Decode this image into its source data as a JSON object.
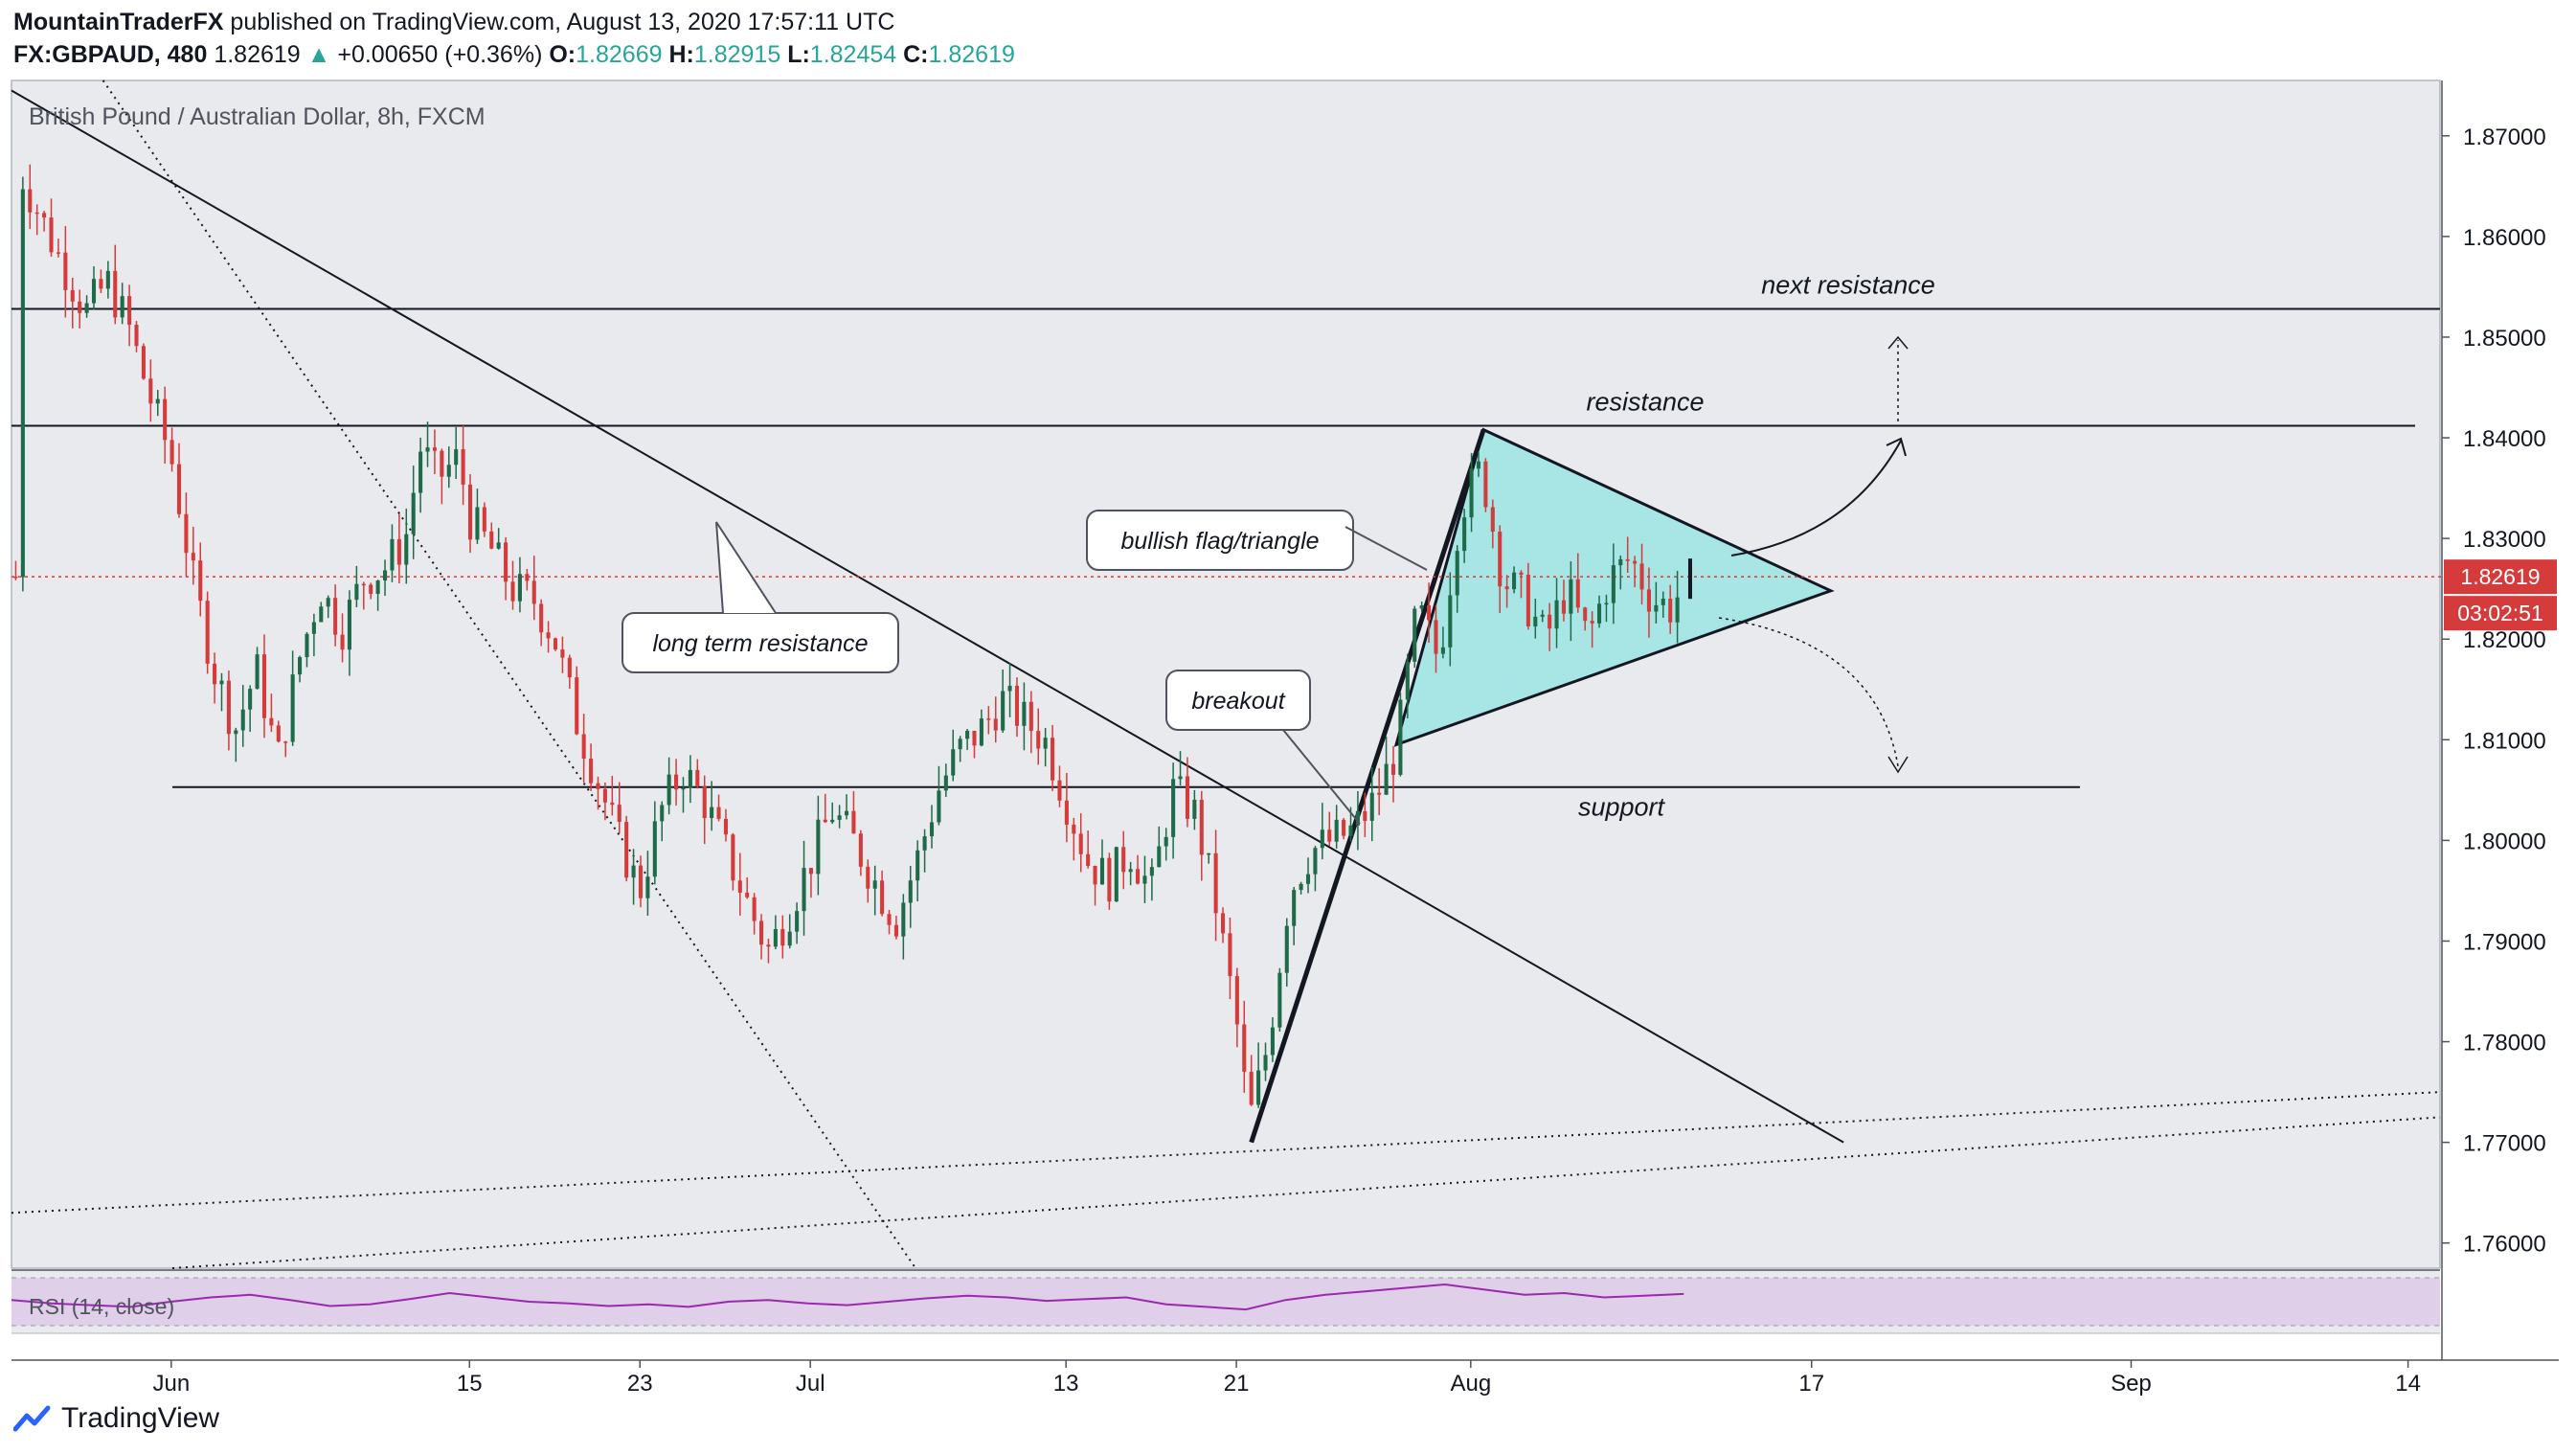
{
  "header": {
    "author": "MountainTraderFX",
    "published_text": "published on TradingView.com, August 13, 2020 17:57:11 UTC",
    "symbol": "FX:GBPAUD, 480",
    "last": "1.82619",
    "change": "+0.00650 (+0.36%)",
    "o_label": "O:",
    "o_value": "1.82669",
    "h_label": "H:",
    "h_value": "1.82915",
    "l_label": "L:",
    "l_value": "1.82454",
    "c_label": "C:",
    "c_value": "1.82619"
  },
  "footer": {
    "brand": "TradingView",
    "logo_icon": "tradingview-logo-icon"
  },
  "colors": {
    "background": "#e9eaed",
    "up_candle": "#1e6b4a",
    "down_candle": "#d53b3b",
    "triangle_fill": "#a8e6e6",
    "price_line": "#d53b3b",
    "rsi_band": "#dfcfe8",
    "rsi_line": "#9c27b0",
    "accent_up": "#26a69a"
  },
  "chart_data": {
    "type": "candlestick",
    "title": "British Pound / Australian Dollar, 8h, FXCM",
    "y_ticks": [
      "1.87000",
      "1.86000",
      "1.85000",
      "1.84000",
      "1.83000",
      "1.82000",
      "1.81000",
      "1.80000",
      "1.79000",
      "1.78000",
      "1.77000",
      "1.76000"
    ],
    "ylim": [
      1.7575,
      1.8755
    ],
    "x_ticks": [
      {
        "label": "Jun",
        "day": 0
      },
      {
        "label": "15",
        "day": 14
      },
      {
        "label": "23",
        "day": 22
      },
      {
        "label": "Jul",
        "day": 30
      },
      {
        "label": "13",
        "day": 42
      },
      {
        "label": "21",
        "day": 50
      },
      {
        "label": "Aug",
        "day": 61
      },
      {
        "label": "17",
        "day": 77
      },
      {
        "label": "Sep",
        "day": 92
      },
      {
        "label": "14",
        "day": 105
      }
    ],
    "xlim_days": [
      -7.5,
      106.5
    ],
    "last_price_label": "1.82619",
    "countdown_label": "03:02:51",
    "current_price": 1.82619,
    "closes_path": [
      {
        "day": -7.0,
        "price": 1.866
      },
      {
        "day": -5.5,
        "price": 1.859
      },
      {
        "day": -4.0,
        "price": 1.8525
      },
      {
        "day": -3.0,
        "price": 1.8555
      },
      {
        "day": -2.0,
        "price": 1.851
      },
      {
        "day": -1.0,
        "price": 1.844
      },
      {
        "day": 0.0,
        "price": 1.838
      },
      {
        "day": 1.0,
        "price": 1.826
      },
      {
        "day": 2.0,
        "price": 1.817
      },
      {
        "day": 3.0,
        "price": 1.811
      },
      {
        "day": 4.0,
        "price": 1.817
      },
      {
        "day": 5.0,
        "price": 1.808
      },
      {
        "day": 6.0,
        "price": 1.818
      },
      {
        "day": 7.0,
        "price": 1.825
      },
      {
        "day": 8.0,
        "price": 1.821
      },
      {
        "day": 9.0,
        "price": 1.826
      },
      {
        "day": 10.0,
        "price": 1.827
      },
      {
        "day": 11.0,
        "price": 1.83
      },
      {
        "day": 11.7,
        "price": 1.839
      },
      {
        "day": 12.5,
        "price": 1.836
      },
      {
        "day": 13.5,
        "price": 1.838
      },
      {
        "day": 14.0,
        "price": 1.832
      },
      {
        "day": 15.0,
        "price": 1.829
      },
      {
        "day": 16.0,
        "price": 1.825
      },
      {
        "day": 17.0,
        "price": 1.824
      },
      {
        "day": 18.0,
        "price": 1.82
      },
      {
        "day": 19.0,
        "price": 1.812
      },
      {
        "day": 20.0,
        "price": 1.806
      },
      {
        "day": 21.0,
        "price": 1.8
      },
      {
        "day": 22.0,
        "price": 1.795
      },
      {
        "day": 23.0,
        "price": 1.803
      },
      {
        "day": 24.0,
        "price": 1.807
      },
      {
        "day": 25.0,
        "price": 1.804
      },
      {
        "day": 26.0,
        "price": 1.799
      },
      {
        "day": 27.0,
        "price": 1.794
      },
      {
        "day": 28.0,
        "price": 1.789
      },
      {
        "day": 29.0,
        "price": 1.793
      },
      {
        "day": 30.0,
        "price": 1.798
      },
      {
        "day": 31.0,
        "price": 1.803
      },
      {
        "day": 32.0,
        "price": 1.8
      },
      {
        "day": 33.0,
        "price": 1.796
      },
      {
        "day": 34.0,
        "price": 1.792
      },
      {
        "day": 35.0,
        "price": 1.798
      },
      {
        "day": 36.0,
        "price": 1.805
      },
      {
        "day": 37.0,
        "price": 1.809
      },
      {
        "day": 38.0,
        "price": 1.811
      },
      {
        "day": 39.0,
        "price": 1.814
      },
      {
        "day": 40.0,
        "price": 1.812
      },
      {
        "day": 41.0,
        "price": 1.81
      },
      {
        "day": 42.0,
        "price": 1.804
      },
      {
        "day": 43.0,
        "price": 1.798
      },
      {
        "day": 44.0,
        "price": 1.796
      },
      {
        "day": 45.0,
        "price": 1.799
      },
      {
        "day": 46.0,
        "price": 1.795
      },
      {
        "day": 47.0,
        "price": 1.805
      },
      {
        "day": 48.0,
        "price": 1.803
      },
      {
        "day": 49.0,
        "price": 1.794
      },
      {
        "day": 50.0,
        "price": 1.782
      },
      {
        "day": 50.6,
        "price": 1.772
      },
      {
        "day": 51.5,
        "price": 1.78
      },
      {
        "day": 52.5,
        "price": 1.795
      },
      {
        "day": 53.5,
        "price": 1.799
      },
      {
        "day": 54.5,
        "price": 1.8
      },
      {
        "day": 55.5,
        "price": 1.801
      },
      {
        "day": 56.5,
        "price": 1.804
      },
      {
        "day": 57.5,
        "price": 1.809
      },
      {
        "day": 58.5,
        "price": 1.823
      },
      {
        "day": 59.5,
        "price": 1.818
      },
      {
        "day": 60.5,
        "price": 1.833
      },
      {
        "day": 61.5,
        "price": 1.837
      },
      {
        "day": 62.5,
        "price": 1.826
      },
      {
        "day": 63.5,
        "price": 1.824
      },
      {
        "day": 64.5,
        "price": 1.82
      },
      {
        "day": 65.5,
        "price": 1.825
      },
      {
        "day": 66.5,
        "price": 1.82
      },
      {
        "day": 67.5,
        "price": 1.826
      },
      {
        "day": 68.5,
        "price": 1.828
      },
      {
        "day": 69.5,
        "price": 1.824
      },
      {
        "day": 70.5,
        "price": 1.823
      },
      {
        "day": 71.0,
        "price": 1.8262
      }
    ],
    "horizontal_levels": [
      {
        "label": "next resistance",
        "price": 1.8528
      },
      {
        "label": "resistance",
        "price": 1.8412
      },
      {
        "label": "support",
        "price": 1.8053
      }
    ],
    "annotations": [
      {
        "text": "bullish flag/triangle"
      },
      {
        "text": "long term resistance"
      },
      {
        "text": "breakout"
      }
    ],
    "triangle": {
      "apex_top": {
        "day": 61.6,
        "price": 1.8408
      },
      "apex_right": {
        "day": 77.9,
        "price": 1.8248
      },
      "bottom_left": {
        "day": 57.5,
        "price": 1.8095
      }
    },
    "trend_lines": [
      {
        "name": "long term resistance",
        "from": {
          "day": -7.5,
          "price": 1.8745
        },
        "to": {
          "day": 78.5,
          "price": 1.77
        }
      },
      {
        "name": "flagpole",
        "from": {
          "day": 50.7,
          "price": 1.77
        },
        "to": {
          "day": 61.6,
          "price": 1.8408
        }
      }
    ],
    "rsi": {
      "label": "RSI (14, close)",
      "values": [
        52,
        48,
        46,
        44,
        50,
        55,
        58,
        52,
        45,
        47,
        53,
        60,
        55,
        50,
        48,
        45,
        47,
        44,
        50,
        52,
        48,
        46,
        50,
        54,
        57,
        55,
        51,
        53,
        55,
        47,
        44,
        41,
        52,
        58,
        62,
        66,
        70,
        64,
        58,
        60,
        55,
        57,
        59
      ]
    }
  }
}
